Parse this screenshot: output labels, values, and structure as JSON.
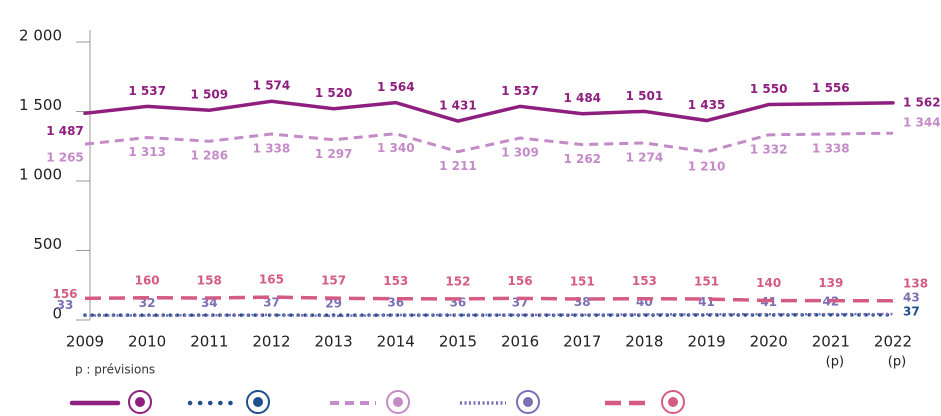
{
  "chart_data": {
    "type": "line",
    "categories": [
      "2009",
      "2010",
      "2011",
      "2012",
      "2013",
      "2014",
      "2015",
      "2016",
      "2017",
      "2018",
      "2019",
      "2020",
      "2021",
      "2022"
    ],
    "x_sublabels": [
      null,
      null,
      null,
      null,
      null,
      null,
      null,
      null,
      null,
      null,
      null,
      null,
      "(p)",
      "(p)"
    ],
    "note": "p : prévisions",
    "ylim": [
      0,
      2000
    ],
    "yticks": [
      0,
      500,
      {
        "value": 1000,
        "label": "1 000"
      },
      {
        "value": 1500,
        "label": "1 500"
      },
      {
        "value": 2000,
        "label": "2 000"
      }
    ],
    "series": [
      {
        "color": "#8e1f7f",
        "dash": "solid",
        "values": [
          1487,
          1537,
          1509,
          1574,
          1520,
          1564,
          1431,
          1537,
          1484,
          1501,
          1435,
          1550,
          1556,
          1562
        ],
        "value_labels": [
          "1 487",
          "1 537",
          "1 509",
          "1 574",
          "1 520",
          "1 564",
          "1 431",
          "1 537",
          "1 484",
          "1 501",
          "1 435",
          "1 550",
          "1 556",
          "1 562"
        ]
      },
      {
        "color": "#1f4e8c",
        "dash": "dotted",
        "values": [
          35,
          35,
          35,
          35,
          35,
          35,
          35,
          35,
          35,
          35,
          36,
          36,
          37,
          37
        ],
        "value_labels": [
          null,
          null,
          null,
          null,
          null,
          null,
          null,
          null,
          null,
          null,
          null,
          null,
          null,
          "37"
        ]
      },
      {
        "color": "#c48bc8",
        "dash": "dashed",
        "values": [
          1265,
          1313,
          1286,
          1338,
          1297,
          1340,
          1211,
          1309,
          1262,
          1274,
          1210,
          1332,
          1338,
          1344
        ],
        "value_labels": [
          "1 265",
          "1 313",
          "1 286",
          "1 338",
          "1 297",
          "1 340",
          "1 211",
          "1 309",
          "1 262",
          "1 274",
          "1 210",
          "1 332",
          "1 338",
          "1 344"
        ]
      },
      {
        "color": "#7d6fb5",
        "dash": "fine-dotted",
        "values": [
          33,
          32,
          34,
          37,
          29,
          36,
          36,
          37,
          38,
          40,
          41,
          41,
          42,
          43
        ]
      },
      {
        "color": "#d45c84",
        "dash": "long-dashed",
        "values": [
          156,
          160,
          158,
          165,
          157,
          153,
          152,
          156,
          151,
          153,
          151,
          140,
          139,
          138
        ]
      }
    ]
  }
}
